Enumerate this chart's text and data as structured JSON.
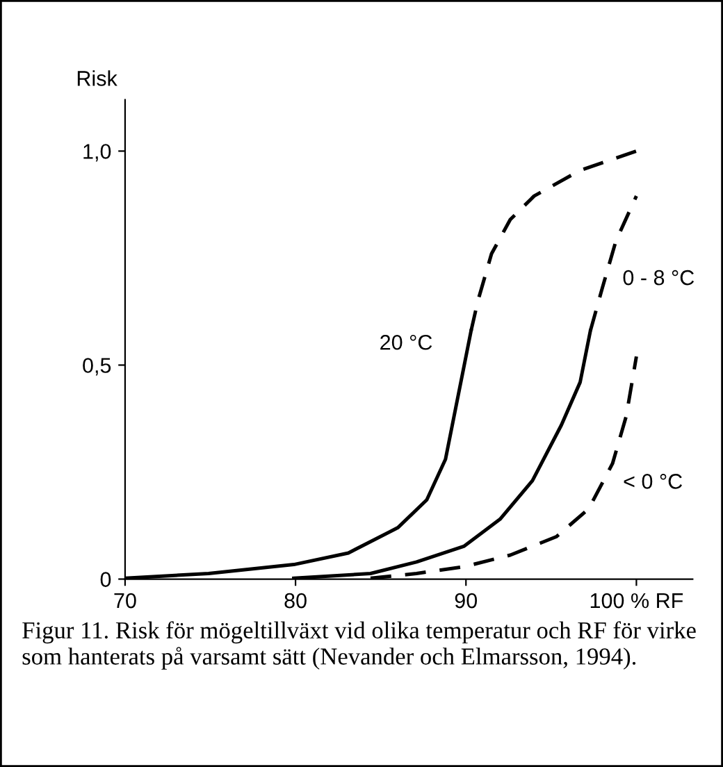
{
  "chart_data": {
    "type": "line",
    "ylabel": "Risk",
    "xlim": [
      70,
      103.3
    ],
    "xticks": [
      70,
      80,
      90,
      {
        "value": 100,
        "label": "100 % RF"
      }
    ],
    "ylim": [
      0,
      1.12
    ],
    "yticks": [
      {
        "value": 0,
        "label": "0"
      },
      {
        "value": 0.5,
        "label": "0,5"
      },
      {
        "value": 1.0,
        "label": "1,0"
      }
    ],
    "grid": false,
    "legend": false,
    "marker": "none",
    "series": [
      {
        "color": "#000000",
        "line_style": "solid",
        "x": [
          70,
          74.9,
          79.9,
          83.1,
          86.0,
          87.7,
          88.8,
          89.4,
          89.9,
          90.3
        ],
        "values": [
          0.002,
          0.013,
          0.034,
          0.061,
          0.12,
          0.185,
          0.28,
          0.4,
          0.5,
          0.58
        ]
      },
      {
        "color": "#000000",
        "line_style": "dashed",
        "x": [
          90.3,
          90.7,
          91.5,
          92.6,
          94.0,
          96.7,
          100
        ],
        "values": [
          0.58,
          0.65,
          0.76,
          0.84,
          0.895,
          0.955,
          1.0
        ]
      },
      {
        "color": "#000000",
        "line_style": "solid",
        "x": [
          79.9,
          84.4,
          87.1,
          89.9,
          92.0,
          93.9,
          95.6,
          96.7,
          97.3
        ],
        "values": [
          0.002,
          0.013,
          0.04,
          0.077,
          0.14,
          0.23,
          0.36,
          0.46,
          0.58
        ]
      },
      {
        "color": "#000000",
        "line_style": "dashed",
        "x": [
          97.3,
          98.0,
          98.8,
          100
        ],
        "values": [
          0.58,
          0.68,
          0.79,
          0.895
        ]
      },
      {
        "color": "#000000",
        "line_style": "dashed",
        "x": [
          84.4,
          87.1,
          89.9,
          92.6,
          95.3,
          97.2,
          98.6,
          99.4,
          100
        ],
        "values": [
          0.002,
          0.013,
          0.029,
          0.056,
          0.099,
          0.164,
          0.27,
          0.38,
          0.52
        ]
      }
    ],
    "annotations": [
      "20 °C",
      "0 - 8 °C",
      "< 0 °C",
      "Figur 11. Risk för mögeltillväxt vid olika temperatur och RF för virke som hanterats på varsamt sätt (Nevander och Elmarsson, 1994)."
    ]
  }
}
